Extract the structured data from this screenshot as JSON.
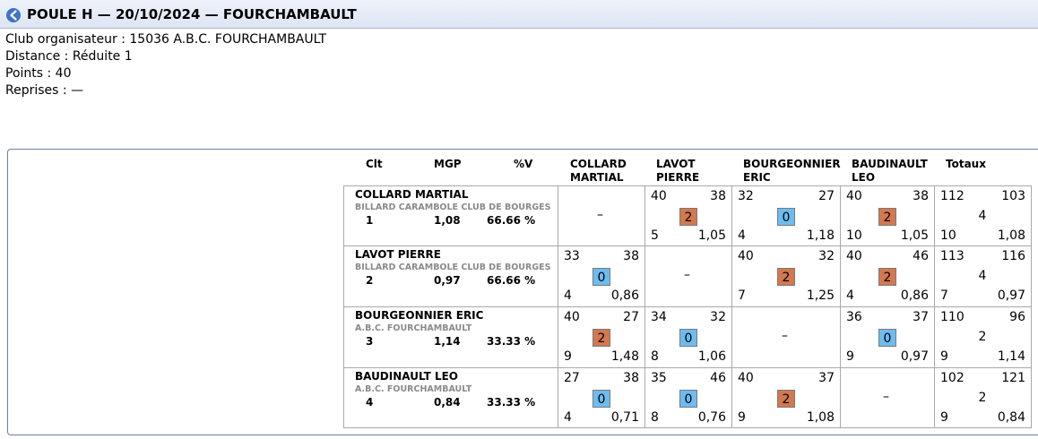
{
  "header": {
    "title": "POULE H — 20/10/2024 — FOURCHAMBAULT",
    "back_icon": "back-arrow-icon"
  },
  "info": {
    "club": "Club organisateur : 15036 A.B.C. FOURCHAMBAULT",
    "distance": "Distance : Réduite 1",
    "points": "Points : 40",
    "reprises": "Reprises : —"
  },
  "table": {
    "headers": {
      "clt": "Clt",
      "mgp": "MGP",
      "pv": "%V",
      "col1_line1": "COLLARD",
      "col1_line2": "MARTIAL",
      "col2_line1": "LAVOT",
      "col2_line2": "PIERRE",
      "col3_line1": "BOURGEONNIER",
      "col3_line2": "ERIC",
      "col4_line1": "BAUDINAULT",
      "col4_line2": "LEO",
      "totaux": "Totaux"
    },
    "dash": "–",
    "rows": [
      {
        "name": "COLLARD MARTIAL",
        "club": "BILLARD CARAMBOLE CLUB DE BOURGES",
        "clt": "1",
        "mgp": "1,08",
        "pv": "66.66 %",
        "cells": [
          null,
          {
            "pts": "40",
            "opp": "38",
            "mp": "2",
            "rep": "5",
            "moy": "1,05",
            "win": true
          },
          {
            "pts": "32",
            "opp": "27",
            "mp": "0",
            "rep": "4",
            "moy": "1,18",
            "win": false
          },
          {
            "pts": "40",
            "opp": "38",
            "mp": "2",
            "rep": "10",
            "moy": "1,05",
            "win": true
          }
        ],
        "total": {
          "pts": "112",
          "opp": "103",
          "mp": "4",
          "rep": "10",
          "moy": "1,08"
        }
      },
      {
        "name": "LAVOT PIERRE",
        "club": "BILLARD CARAMBOLE CLUB DE BOURGES",
        "clt": "2",
        "mgp": "0,97",
        "pv": "66.66 %",
        "cells": [
          {
            "pts": "33",
            "opp": "38",
            "mp": "0",
            "rep": "4",
            "moy": "0,86",
            "win": false
          },
          null,
          {
            "pts": "40",
            "opp": "32",
            "mp": "2",
            "rep": "7",
            "moy": "1,25",
            "win": true
          },
          {
            "pts": "40",
            "opp": "46",
            "mp": "2",
            "rep": "4",
            "moy": "0,86",
            "win": true
          }
        ],
        "total": {
          "pts": "113",
          "opp": "116",
          "mp": "4",
          "rep": "7",
          "moy": "0,97"
        }
      },
      {
        "name": "BOURGEONNIER ERIC",
        "club": "A.B.C. FOURCHAMBAULT",
        "clt": "3",
        "mgp": "1,14",
        "pv": "33.33 %",
        "cells": [
          {
            "pts": "40",
            "opp": "27",
            "mp": "2",
            "rep": "9",
            "moy": "1,48",
            "win": true
          },
          {
            "pts": "34",
            "opp": "32",
            "mp": "0",
            "rep": "8",
            "moy": "1,06",
            "win": false
          },
          null,
          {
            "pts": "36",
            "opp": "37",
            "mp": "0",
            "rep": "9",
            "moy": "0,97",
            "win": false
          }
        ],
        "total": {
          "pts": "110",
          "opp": "96",
          "mp": "2",
          "rep": "9",
          "moy": "1,14"
        }
      },
      {
        "name": "BAUDINAULT LEO",
        "club": "A.B.C. FOURCHAMBAULT",
        "clt": "4",
        "mgp": "0,84",
        "pv": "33.33 %",
        "cells": [
          {
            "pts": "27",
            "opp": "38",
            "mp": "0",
            "rep": "4",
            "moy": "0,71",
            "win": false
          },
          {
            "pts": "35",
            "opp": "46",
            "mp": "0",
            "rep": "8",
            "moy": "0,76",
            "win": false
          },
          {
            "pts": "40",
            "opp": "37",
            "mp": "2",
            "rep": "9",
            "moy": "1,08",
            "win": true
          },
          null
        ],
        "total": {
          "pts": "102",
          "opp": "121",
          "mp": "2",
          "rep": "9",
          "moy": "0,84"
        }
      }
    ]
  }
}
